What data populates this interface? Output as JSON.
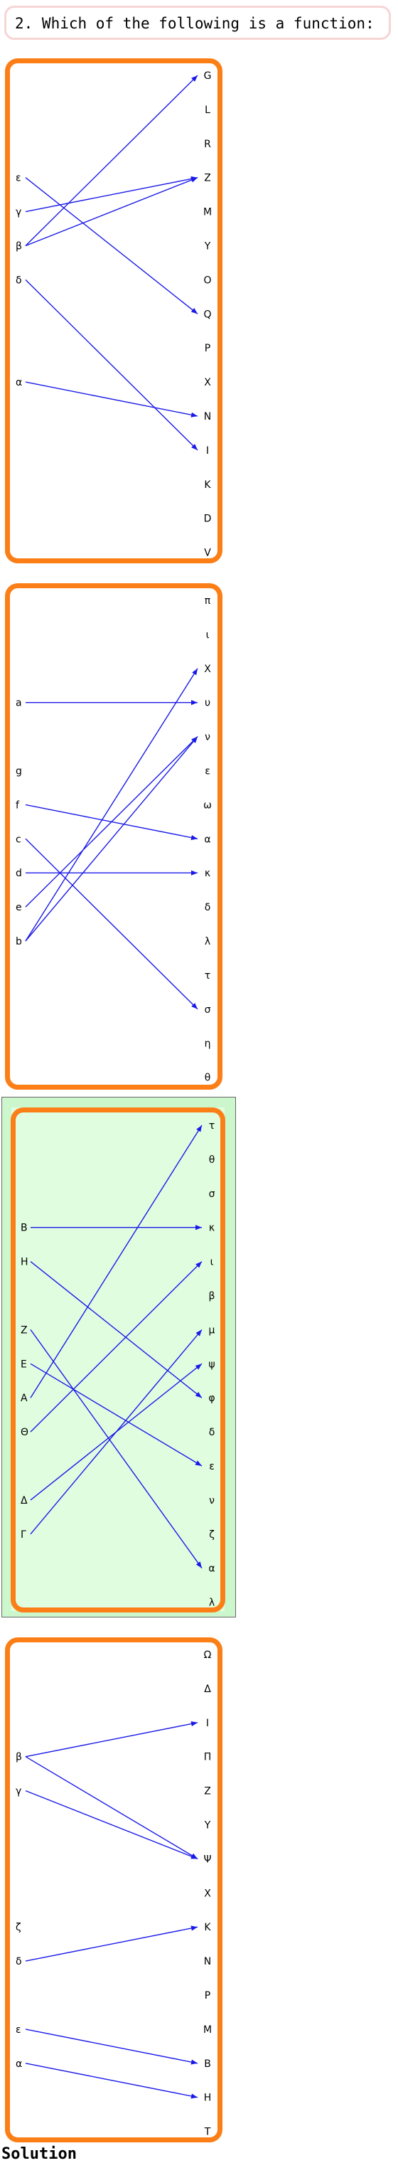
{
  "question": "2. Which of the following is a function:",
  "solution_label": "Solution",
  "colors": {
    "panel_border": "#fb7e16",
    "arrow": "#1a1ae8",
    "correct_bg": "#ccf7cc",
    "question_border": "#f6d5d5"
  },
  "panels": [
    {
      "correct": false,
      "left": [
        "ε",
        "γ",
        "β",
        "δ",
        "α"
      ],
      "right": [
        "G",
        "L",
        "R",
        "Z",
        "M",
        "Y",
        "O",
        "Q",
        "P",
        "X",
        "N",
        "I",
        "K",
        "D",
        "V"
      ],
      "edges": [
        [
          "ε",
          "Q"
        ],
        [
          "γ",
          "Z"
        ],
        [
          "β",
          "G"
        ],
        [
          "β",
          "Z"
        ],
        [
          "δ",
          "I"
        ],
        [
          "α",
          "N"
        ]
      ]
    },
    {
      "correct": false,
      "left": [
        "a",
        "g",
        "f",
        "c",
        "d",
        "e",
        "b"
      ],
      "right": [
        "π",
        "ι",
        "X",
        "υ",
        "ν",
        "ε",
        "ω",
        "α",
        "κ",
        "δ",
        "λ",
        "τ",
        "σ",
        "η",
        "θ"
      ],
      "edges": [
        [
          "a",
          "υ"
        ],
        [
          "f",
          "α"
        ],
        [
          "c",
          "σ"
        ],
        [
          "d",
          "κ"
        ],
        [
          "e",
          "ν"
        ],
        [
          "b",
          "X"
        ],
        [
          "b",
          "ν"
        ]
      ]
    },
    {
      "correct": true,
      "left": [
        "B",
        "H",
        "Z",
        "E",
        "A",
        "Θ",
        "Δ",
        "Γ"
      ],
      "right": [
        "τ",
        "θ",
        "σ",
        "κ",
        "ι",
        "β",
        "μ",
        "ψ",
        "φ",
        "δ",
        "ε",
        "ν",
        "ζ",
        "α",
        "λ"
      ],
      "edges": [
        [
          "B",
          "κ"
        ],
        [
          "H",
          "φ"
        ],
        [
          "Z",
          "α"
        ],
        [
          "E",
          "ε"
        ],
        [
          "A",
          "τ"
        ],
        [
          "Θ",
          "ι"
        ],
        [
          "Δ",
          "ψ"
        ],
        [
          "Γ",
          "μ"
        ]
      ]
    },
    {
      "correct": false,
      "left": [
        "β",
        "γ",
        "ζ",
        "δ",
        "ε",
        "α"
      ],
      "right": [
        "Ω",
        "Δ",
        "I",
        "Π",
        "Z",
        "Y",
        "Ψ",
        "X",
        "K",
        "N",
        "P",
        "M",
        "B",
        "H",
        "T"
      ],
      "edges": [
        [
          "β",
          "I"
        ],
        [
          "β",
          "Ψ"
        ],
        [
          "γ",
          "Ψ"
        ],
        [
          "δ",
          "K"
        ],
        [
          "ε",
          "B"
        ],
        [
          "α",
          "H"
        ]
      ]
    }
  ]
}
